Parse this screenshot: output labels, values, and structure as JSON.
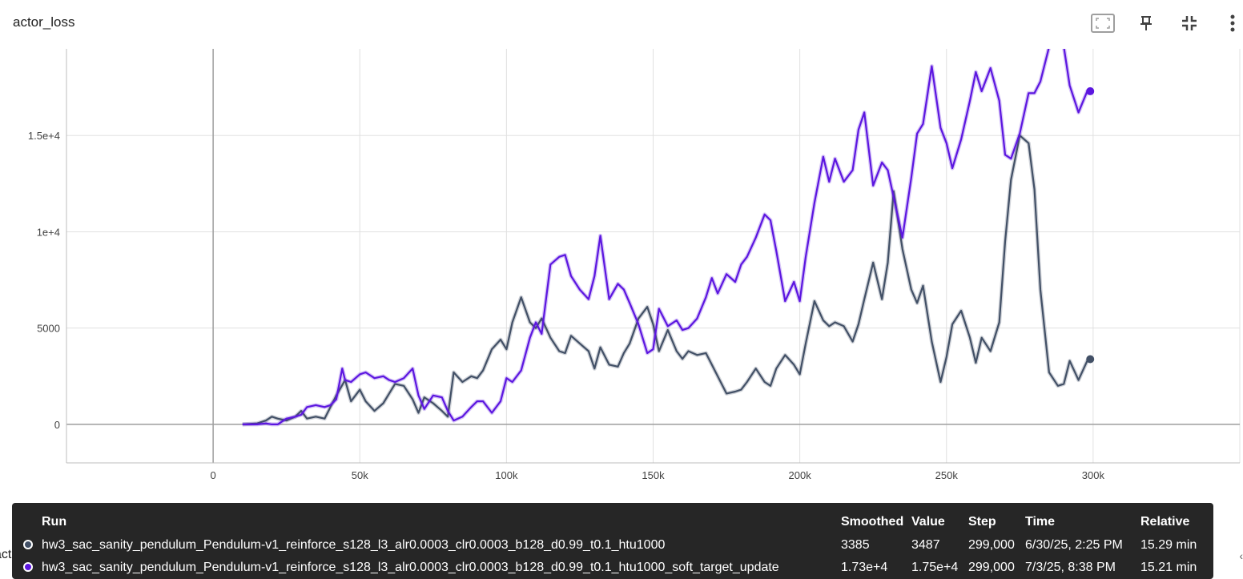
{
  "card": {
    "title": "actor_loss",
    "icons": [
      "fit-domain-icon",
      "pin-icon",
      "collapse-icon",
      "more-vert-icon"
    ]
  },
  "chart_data": {
    "type": "line",
    "xlabel": "",
    "ylabel": "",
    "xlim": [
      -50000,
      350000
    ],
    "ylim": [
      -2000,
      19500
    ],
    "x_ticks": [
      0,
      50000,
      100000,
      150000,
      200000,
      250000,
      300000
    ],
    "x_tick_labels": [
      "0",
      "50k",
      "100k",
      "150k",
      "200k",
      "250k",
      "300k"
    ],
    "y_ticks": [
      0,
      5000,
      10000,
      15000
    ],
    "y_tick_labels": [
      "0",
      "5000",
      "1e+4",
      "1.5e+4"
    ],
    "grid": true,
    "series": [
      {
        "name": "hw3_sac_sanity_pendulum_Pendulum-v1_reinforce_s128_l3_alr0.0003_clr0.0003_b128_d0.99_t0.1_htu1000",
        "color": "#425066",
        "x": [
          10000,
          15000,
          18000,
          20000,
          22000,
          25000,
          28000,
          30000,
          32000,
          35000,
          38000,
          40000,
          42000,
          45000,
          47000,
          50000,
          52000,
          55000,
          58000,
          60000,
          62000,
          65000,
          68000,
          70000,
          72000,
          75000,
          78000,
          80000,
          82000,
          85000,
          88000,
          90000,
          92000,
          95000,
          98000,
          100000,
          102000,
          105000,
          108000,
          110000,
          112000,
          115000,
          118000,
          120000,
          122000,
          125000,
          128000,
          130000,
          132000,
          135000,
          138000,
          140000,
          142000,
          145000,
          148000,
          150000,
          152000,
          155000,
          158000,
          160000,
          162000,
          165000,
          168000,
          170000,
          172000,
          175000,
          178000,
          180000,
          182000,
          185000,
          188000,
          190000,
          192000,
          195000,
          198000,
          200000,
          202000,
          205000,
          208000,
          210000,
          212000,
          215000,
          218000,
          220000,
          222000,
          225000,
          228000,
          230000,
          232000,
          235000,
          238000,
          240000,
          242000,
          245000,
          248000,
          250000,
          252000,
          255000,
          258000,
          260000,
          262000,
          265000,
          268000,
          270000,
          272000,
          275000,
          278000,
          280000,
          282000,
          285000,
          288000,
          290000,
          292000,
          295000,
          298000,
          299000
        ],
        "values": [
          0,
          50,
          200,
          400,
          300,
          200,
          400,
          700,
          300,
          400,
          300,
          900,
          1500,
          2300,
          1200,
          1800,
          1200,
          700,
          1100,
          1600,
          2100,
          2000,
          1300,
          600,
          1400,
          1100,
          700,
          400,
          2700,
          2200,
          2500,
          2400,
          2800,
          3900,
          4400,
          3900,
          5300,
          6600,
          5300,
          5000,
          5500,
          4500,
          3800,
          3700,
          4600,
          4200,
          3800,
          2900,
          4000,
          3100,
          3000,
          3700,
          4200,
          5500,
          6100,
          5200,
          3800,
          4900,
          3800,
          3400,
          3800,
          3600,
          3700,
          3100,
          2500,
          1600,
          1700,
          1800,
          2200,
          2900,
          2200,
          2000,
          2900,
          3600,
          3100,
          2600,
          4200,
          6400,
          5400,
          5100,
          5300,
          5100,
          4300,
          5200,
          6500,
          8400,
          6500,
          8400,
          12100,
          9100,
          7000,
          6300,
          7200,
          4300,
          2200,
          3500,
          5200,
          5900,
          4500,
          3200,
          4500,
          3800,
          5300,
          9500,
          12700,
          15000,
          14600,
          12200,
          7000,
          2700,
          2000,
          2100,
          3300,
          2300,
          3300,
          3385
        ]
      },
      {
        "name": "hw3_sac_sanity_pendulum_Pendulum-v1_reinforce_s128_l3_alr0.0003_clr0.0003_b128_d0.99_t0.1_htu1000_soft_target_update",
        "color": "#5c16e0",
        "x": [
          10000,
          15000,
          18000,
          20000,
          22000,
          25000,
          28000,
          30000,
          32000,
          35000,
          38000,
          40000,
          42000,
          44000,
          45000,
          47000,
          50000,
          52000,
          55000,
          58000,
          60000,
          62000,
          65000,
          68000,
          70000,
          72000,
          75000,
          78000,
          80000,
          82000,
          85000,
          88000,
          90000,
          92000,
          95000,
          98000,
          100000,
          102000,
          105000,
          108000,
          110000,
          112000,
          115000,
          118000,
          120000,
          122000,
          125000,
          128000,
          130000,
          132000,
          135000,
          138000,
          140000,
          142000,
          145000,
          148000,
          150000,
          152000,
          155000,
          158000,
          160000,
          162000,
          165000,
          168000,
          170000,
          172000,
          175000,
          178000,
          180000,
          182000,
          185000,
          188000,
          190000,
          192000,
          195000,
          198000,
          200000,
          202000,
          205000,
          208000,
          210000,
          212000,
          215000,
          218000,
          220000,
          222000,
          225000,
          228000,
          230000,
          232000,
          235000,
          238000,
          240000,
          242000,
          245000,
          248000,
          250000,
          252000,
          255000,
          258000,
          260000,
          262000,
          265000,
          268000,
          270000,
          272000,
          275000,
          278000,
          280000,
          282000,
          285000,
          288000,
          290000,
          292000,
          295000,
          298000,
          299000
        ],
        "values": [
          0,
          0,
          50,
          0,
          0,
          300,
          400,
          500,
          900,
          1000,
          900,
          1000,
          1300,
          2900,
          2300,
          2200,
          2600,
          2700,
          2400,
          2500,
          2300,
          2200,
          2400,
          2900,
          1500,
          800,
          1500,
          1400,
          700,
          200,
          400,
          900,
          1200,
          1200,
          600,
          1200,
          2400,
          2200,
          2800,
          4500,
          5300,
          4700,
          8300,
          8700,
          8800,
          7700,
          7000,
          6500,
          7700,
          9800,
          6500,
          7300,
          7000,
          6300,
          5200,
          3700,
          3900,
          6000,
          5100,
          5400,
          4900,
          5000,
          5500,
          6600,
          7600,
          6800,
          7800,
          7400,
          8300,
          8700,
          9700,
          10900,
          10600,
          9000,
          6400,
          7400,
          6400,
          8700,
          11500,
          13900,
          12600,
          13800,
          12600,
          13200,
          15300,
          16200,
          12400,
          13600,
          13200,
          11800,
          9700,
          12800,
          15100,
          15600,
          18600,
          15400,
          14600,
          13300,
          14800,
          16800,
          18300,
          17300,
          18500,
          16800,
          14000,
          13800,
          15100,
          17200,
          17200,
          17800,
          19600,
          19800,
          19600,
          17600,
          16200,
          17300,
          17300
        ]
      }
    ]
  },
  "tooltip": {
    "headers": {
      "run": "Run",
      "smoothed": "Smoothed",
      "value": "Value",
      "step": "Step",
      "time": "Time",
      "relative": "Relative"
    },
    "rows": [
      {
        "run": "hw3_sac_sanity_pendulum_Pendulum-v1_reinforce_s128_l3_alr0.0003_clr0.0003_b128_d0.99_t0.1_htu1000",
        "smoothed": "3385",
        "value": "3487",
        "step": "299,000",
        "time": "6/30/25, 2:25 PM",
        "relative": "15.29 min",
        "color": "#425066"
      },
      {
        "run": "hw3_sac_sanity_pendulum_Pendulum-v1_reinforce_s128_l3_alr0.0003_clr0.0003_b128_d0.99_t0.1_htu1000_soft_target_update",
        "smoothed": "1.73e+4",
        "value": "1.75e+4",
        "step": "299,000",
        "time": "7/3/25, 8:38 PM",
        "relative": "15.21 min",
        "color": "#5c16e0"
      }
    ]
  },
  "next_card": {
    "title_fragment": "actor_lr"
  }
}
